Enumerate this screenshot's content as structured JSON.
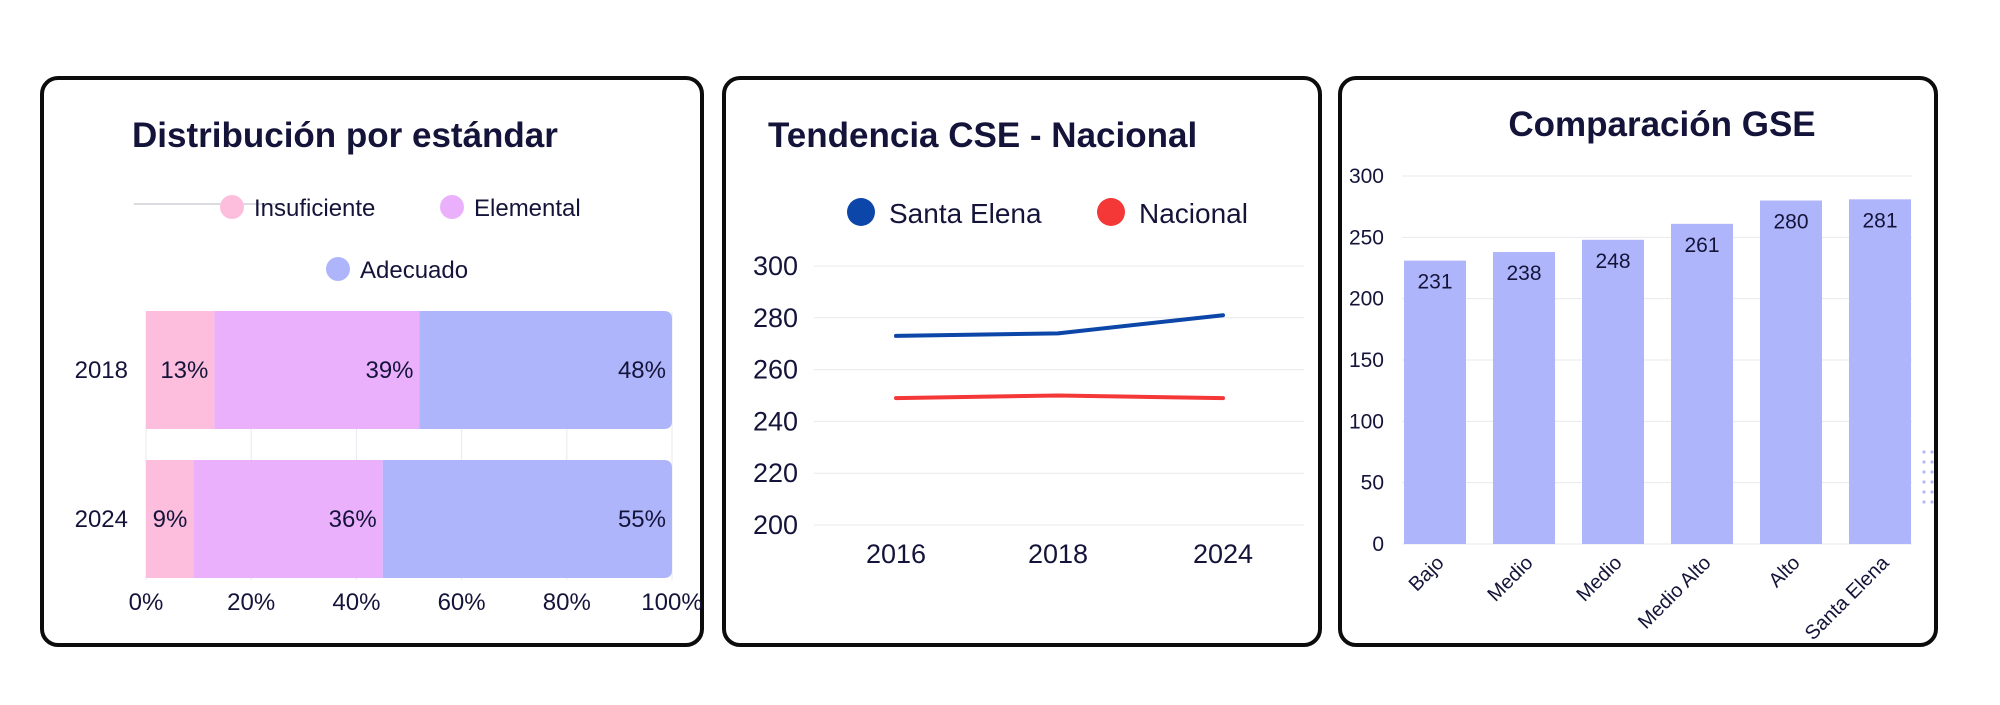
{
  "chart_data": [
    {
      "type": "bar",
      "orientation": "horizontal",
      "stacked": true,
      "title": "Distribución por estándar",
      "categories": [
        "2018",
        "2024"
      ],
      "series": [
        {
          "name": "Insuficiente",
          "values": [
            13,
            9
          ],
          "labels": [
            "13%",
            "9%"
          ],
          "color": "#fdbedd"
        },
        {
          "name": "Elemental",
          "values": [
            39,
            36
          ],
          "labels": [
            "39%",
            "36%"
          ],
          "color": "#ebb0fc"
        },
        {
          "name": "Adecuado",
          "values": [
            48,
            55
          ],
          "labels": [
            "48%",
            "55%"
          ],
          "color": "#afb5fb"
        }
      ],
      "xlim": [
        0,
        100
      ],
      "xticks": [
        "0%",
        "20%",
        "40%",
        "60%",
        "80%",
        "100%"
      ],
      "legend": "top",
      "grid": true
    },
    {
      "type": "line",
      "title": "Tendencia CSE - Nacional",
      "x": [
        "2016",
        "2018",
        "2024"
      ],
      "series": [
        {
          "name": "Santa Elena",
          "values": [
            273,
            274,
            281
          ],
          "color": "#0b46a8"
        },
        {
          "name": "Nacional",
          "values": [
            249,
            250,
            249
          ],
          "color": "#f43737"
        }
      ],
      "ylim": [
        200,
        300
      ],
      "yticks": [
        "300",
        "280",
        "260",
        "240",
        "220",
        "200"
      ],
      "legend": "top",
      "grid": true
    },
    {
      "type": "bar",
      "title": "Comparación GSE",
      "categories": [
        "Bajo",
        "Medio",
        "Medio",
        "Medio Alto",
        "Alto",
        "Santa Elena"
      ],
      "values": [
        231,
        238,
        248,
        261,
        280,
        281
      ],
      "value_labels": [
        "231",
        "238",
        "248",
        "261",
        "280",
        "281"
      ],
      "color": "#afb5fb",
      "ylim": [
        0,
        300
      ],
      "yticks": [
        "300",
        "250",
        "200",
        "150",
        "100",
        "50",
        "0"
      ],
      "grid": true
    }
  ]
}
